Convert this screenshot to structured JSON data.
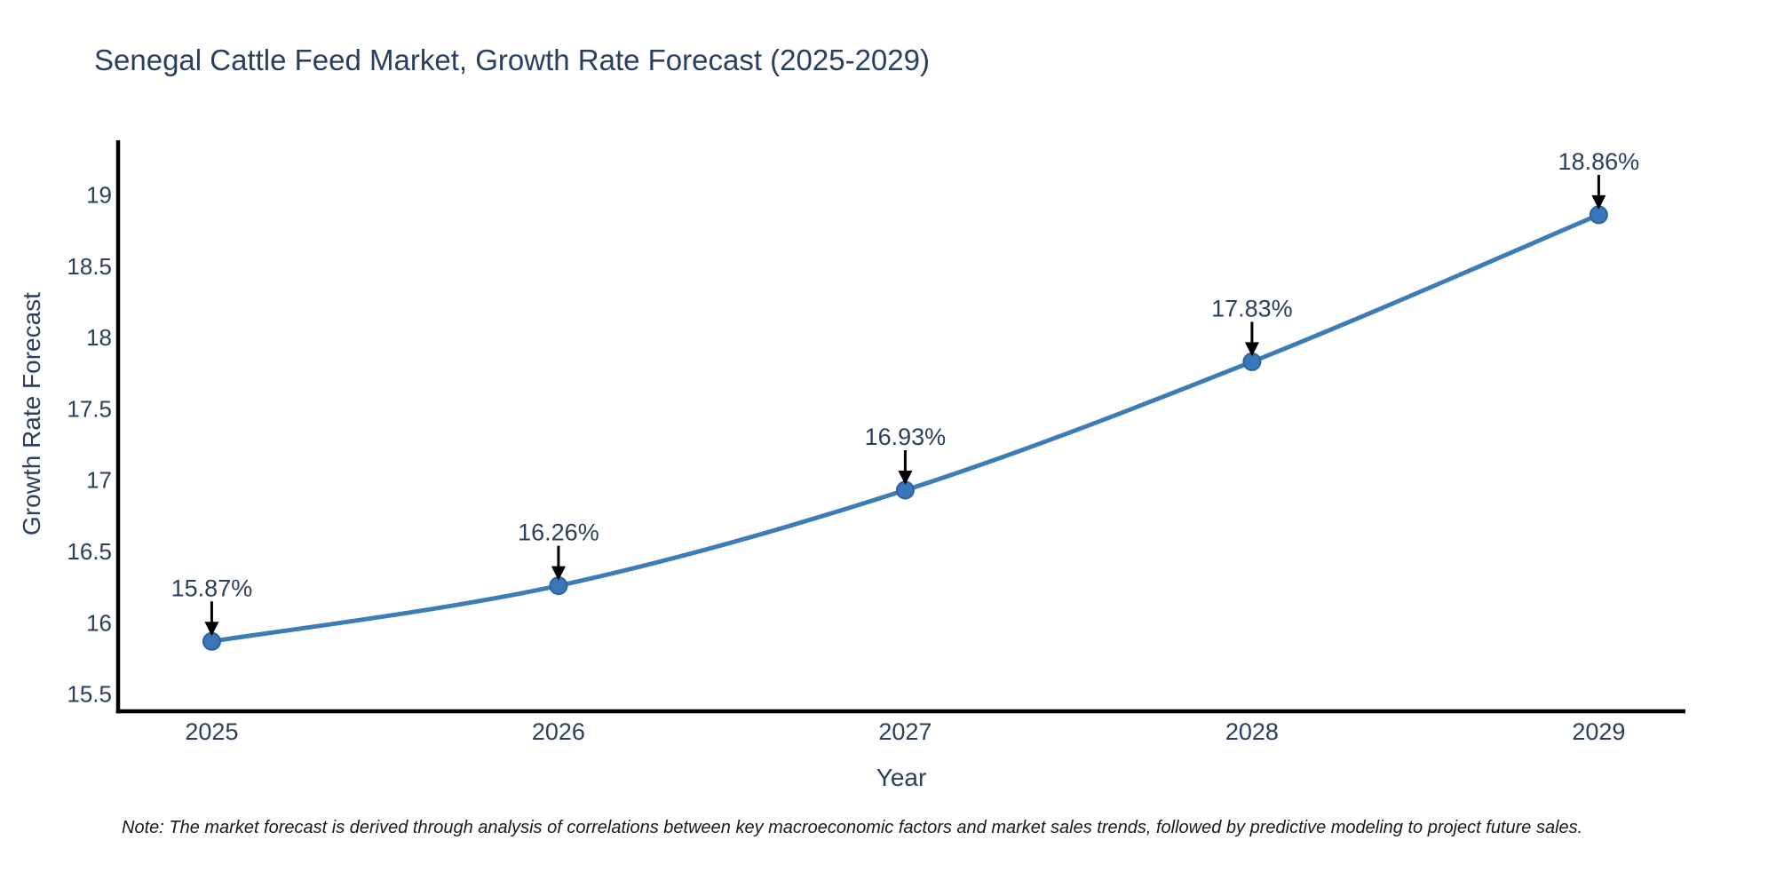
{
  "chart_data": {
    "type": "line",
    "title": "Senegal Cattle Feed Market, Growth Rate Forecast (2025-2029)",
    "xlabel": "Year",
    "ylabel": "Growth Rate Forecast",
    "categories": [
      "2025",
      "2026",
      "2027",
      "2028",
      "2029"
    ],
    "values": [
      15.87,
      16.26,
      16.93,
      17.83,
      18.86
    ],
    "point_labels": [
      "15.87%",
      "16.26%",
      "16.93%",
      "17.83%",
      "18.86%"
    ],
    "y_tick_labels": [
      "15.5",
      "16",
      "16.5",
      "17",
      "17.5",
      "18",
      "18.5",
      "19"
    ],
    "y_tick_values": [
      15.5,
      16,
      16.5,
      17,
      17.5,
      18,
      18.5,
      19
    ],
    "ylim": [
      15.38,
      19.37
    ],
    "xlim": [
      -0.27,
      4.25
    ],
    "grid": false,
    "legend_position": "none",
    "line_shape": "spline",
    "note": "Note: The market forecast is derived through analysis of correlations between key macroeconomic factors and market sales trends, followed by predictive modeling to project future sales.",
    "colors": {
      "line": "#3e7cb8",
      "marker_fill": "#3878ba",
      "marker_edge": "#2d6396",
      "axis_line": "#000000",
      "tick_text": "#2a3f5f",
      "annotation_text": "#2a3f5f",
      "annotation_arrow": "#000000",
      "title_text": "#2a3f5f",
      "note_text": "#1a1a1a",
      "background": "#ffffff"
    }
  }
}
